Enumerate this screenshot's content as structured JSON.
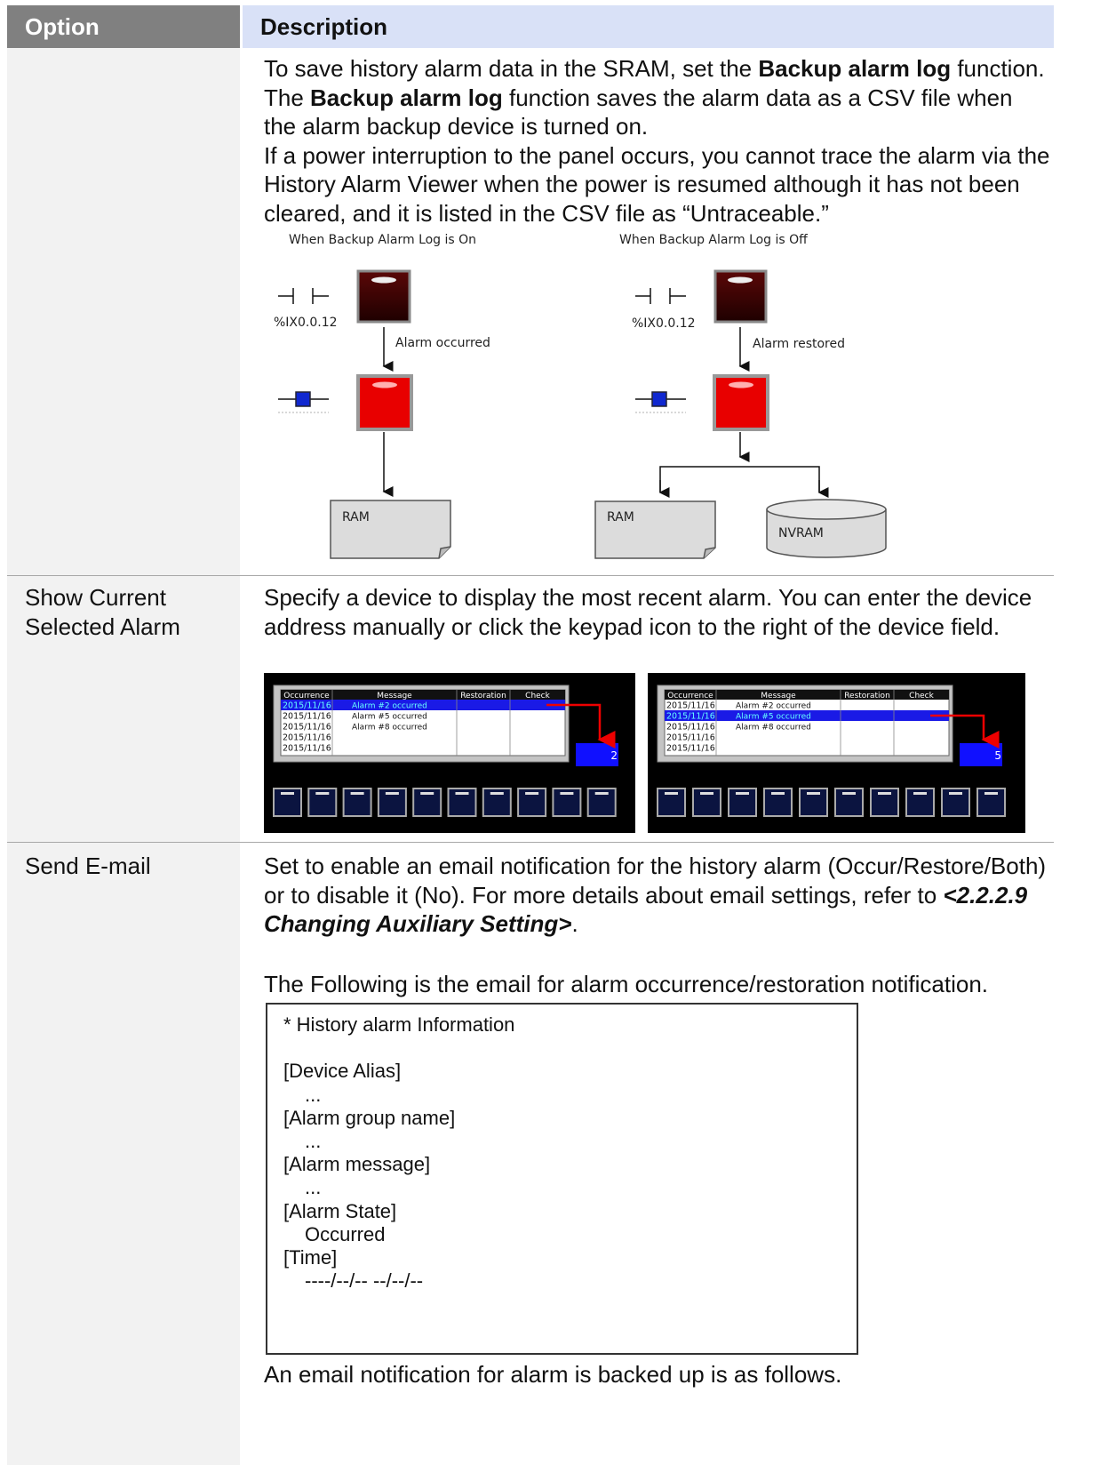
{
  "header": {
    "option": "Option",
    "description": "Description"
  },
  "rows": [
    {
      "description": {
        "paragraphs": [
          [
            "To save history alarm data in the SRAM, set the ",
            "Backup alarm log",
            " function. The ",
            "Backup alarm log",
            " function saves the alarm data as a CSV file when the alarm backup device is turned on."
          ],
          [
            "If a power interruption to the panel occurs, you cannot trace the alarm via the History Alarm Viewer when the power is resumed although it has not been cleared, and it is listed in the CSV file as “Untraceable.”"
          ]
        ],
        "diagram": {
          "on": {
            "title": "When Backup Alarm Log is On",
            "address": "%IX0.0.12",
            "event": "Alarm occurred",
            "storage": [
              "RAM"
            ]
          },
          "off": {
            "title": "When Backup Alarm Log is Off",
            "address": "%IX0.0.12",
            "event": "Alarm restored",
            "storage": [
              "RAM",
              "NVRAM"
            ]
          }
        }
      }
    },
    {
      "option": "Show Current Selected Alarm",
      "description": {
        "paragraphs": [
          [
            "Specify a device to display the most recent alarm. You can enter the device address manually or click the keypad icon to the right of the device field."
          ]
        ],
        "screenshots": [
          {
            "columns": [
              "Occurrence",
              "Message",
              "Restoration",
              "Check"
            ],
            "dates": [
              "2015/11/16",
              "2015/11/16",
              "2015/11/16",
              "2015/11/16",
              "2015/11/16"
            ],
            "messages": [
              "Alarm #2 occurred",
              "Alarm #5 occurred",
              "Alarm #8 occurred"
            ],
            "selected": 0,
            "value": 2
          },
          {
            "columns": [
              "Occurrence",
              "Message",
              "Restoration",
              "Check"
            ],
            "dates": [
              "2015/11/16",
              "2015/11/16",
              "2015/11/16",
              "2015/11/16",
              "2015/11/16"
            ],
            "messages": [
              "Alarm #2 occurred",
              "Alarm #5 occurred",
              "Alarm #8 occurred"
            ],
            "selected": 1,
            "value": 5
          }
        ]
      }
    },
    {
      "option": "Send E-mail",
      "description": {
        "paragraphs": [
          [
            "Set to enable an email notification for the history alarm (Occur/Restore/Both) or to disable it (No). For more details about email settings, refer to ",
            "<2.2.2.9 Changing Auxiliary Setting>",
            "."
          ],
          [
            "The Following is the email for alarm occurrence/restoration notification."
          ],
          [
            "An email notification for alarm is backed up is as follows."
          ]
        ],
        "email": [
          "* History alarm Information",
          "[Device Alias]",
          "...",
          "[Alarm group name]",
          "...",
          "[Alarm message]",
          "...",
          "[Alarm State]",
          "Occurred",
          "[Time]",
          "----/--/-- --/--/--"
        ]
      }
    }
  ]
}
